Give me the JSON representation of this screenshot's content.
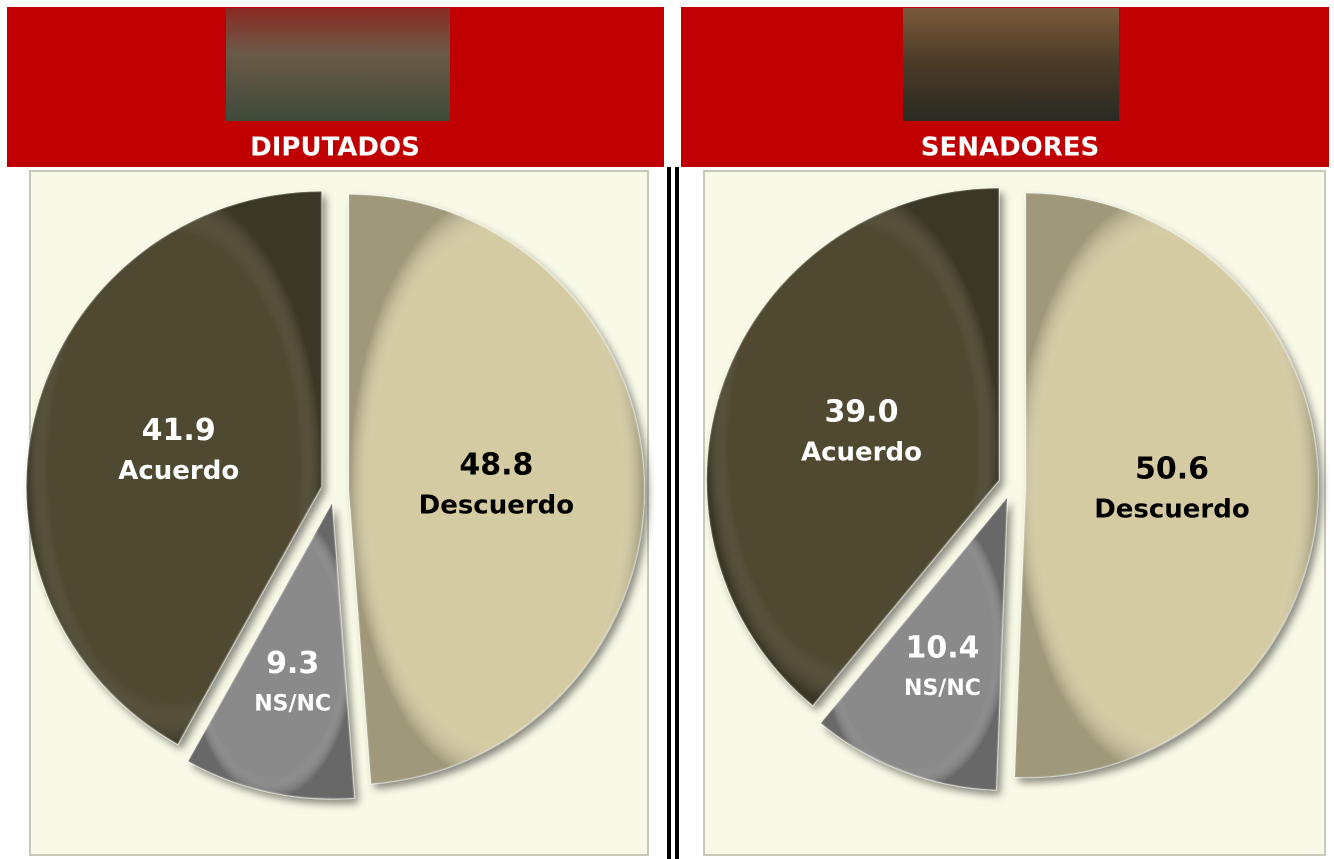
{
  "chart_data": [
    {
      "type": "pie",
      "title": "DIPUTADOS",
      "categories": [
        "Descuerdo",
        "NS/NC",
        "Acuerdo"
      ],
      "values": [
        48.8,
        9.3,
        41.9
      ],
      "value_labels": [
        "48.8",
        "9.3",
        "41.9"
      ],
      "colors": [
        "#d4cba3",
        "#8a8a8a",
        "#4f4a33"
      ],
      "label_colors": [
        "#000000",
        "#ffffff",
        "#ffffff"
      ]
    },
    {
      "type": "pie",
      "title": "SENADORES",
      "categories": [
        "Descuerdo",
        "NS/NC",
        "Acuerdo"
      ],
      "values": [
        50.6,
        10.4,
        39.0
      ],
      "value_labels": [
        "50.6",
        "10.4",
        "39.0"
      ],
      "colors": [
        "#d4cba3",
        "#8a8a8a",
        "#4f4a33"
      ],
      "label_colors": [
        "#000000",
        "#ffffff",
        "#ffffff"
      ]
    }
  ]
}
